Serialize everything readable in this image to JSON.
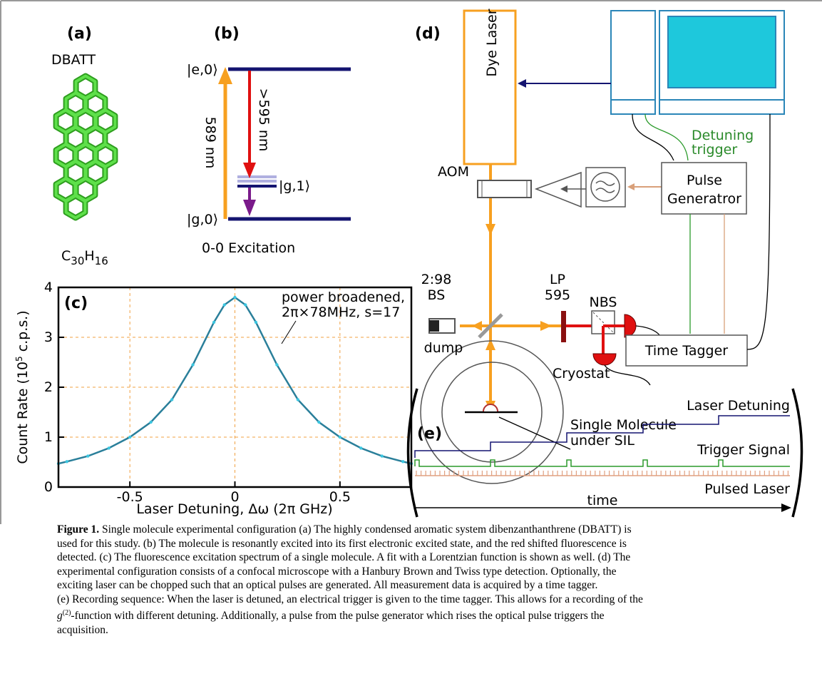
{
  "panel_a": {
    "label": "(a)",
    "name": "DBATT",
    "formula": [
      "C",
      "30",
      "H",
      "16"
    ]
  },
  "panel_b": {
    "label": "(b)",
    "upper": "|e,0⟩",
    "lower": "|g,0⟩",
    "vib": "|g,1⟩",
    "excitation": "589 nm",
    "emission": ">595 nm",
    "caption": "0-0 Excitation"
  },
  "chart_data": {
    "type": "line",
    "panel_label": "(c)",
    "annotation": [
      "power broadened,",
      "2π×78MHz, s=17"
    ],
    "x_label": "Laser Detuning, Δω (2π GHz)",
    "y_label": [
      "Count Rate (10",
      "5",
      " c.p.s.)"
    ],
    "x": [
      -0.84,
      -0.8,
      -0.7,
      -0.6,
      -0.5,
      -0.4,
      -0.3,
      -0.2,
      -0.1,
      -0.05,
      0,
      0.05,
      0.1,
      0.2,
      0.3,
      0.4,
      0.5,
      0.6,
      0.7,
      0.8,
      0.84
    ],
    "values": [
      0.47,
      0.51,
      0.62,
      0.78,
      1.0,
      1.3,
      1.75,
      2.45,
      3.3,
      3.65,
      3.8,
      3.65,
      3.3,
      2.45,
      1.75,
      1.3,
      1.0,
      0.78,
      0.62,
      0.51,
      0.47
    ],
    "color": "#2a7f9a",
    "marker_color": "#3cc6e0",
    "xlim": [
      -0.84,
      0.84
    ],
    "ylim": [
      0,
      4
    ],
    "xticks": [
      -0.5,
      0,
      0.5
    ],
    "yticks": [
      0,
      1,
      2,
      3,
      4
    ],
    "grid": true,
    "grid_color": "#f0a040"
  },
  "panel_d": {
    "label": "(d)",
    "laser": "Dye Laser",
    "aom": "AOM",
    "bs": [
      "2:98",
      "BS"
    ],
    "dump": "dump",
    "lp": [
      "LP",
      "595"
    ],
    "nbs": "NBS",
    "cryostat": "Cryostat",
    "sample": [
      "Single Molecule",
      "under SIL"
    ],
    "pulse_gen": [
      "Pulse",
      "Generatror"
    ],
    "detuning": [
      "Detuning",
      "trigger"
    ],
    "tagger": "Time Tagger"
  },
  "panel_e": {
    "label": "(e)",
    "detuning": "Laser Detuning",
    "trigger": "Trigger Signal",
    "pulsed": "Pulsed Laser",
    "time": "time"
  },
  "caption": {
    "label": "Figure 1.",
    "lines": [
      " Single molecule experimental configuration (a) The highly condensed aromatic system dibenzanthanthrene (DBATT) is",
      "used for this study. (b) The molecule is resonantly excited into its first electronic excited state, and the red shifted fluorescence is",
      "detected. (c) The fluorescence excitation spectrum of a single molecule. A fit with a Lorentzian function is shown as well. (d) The",
      "experimental configuration consists of a confocal microscope with a Hanbury Brown and Twiss type detection. Optionally, the",
      "exciting laser can be chopped such that an optical pulses are generated. All measurement data is acquired by a time tagger.",
      "(e) Recording sequence: When the laser is detuned, an electrical trigger is given to the time tagger. This allows for a recording of the"
    ],
    "g_line": [
      "g",
      "(2)",
      "-function with different detuning. Additionally, a pulse from the pulse generator which rises the optical pulse triggers the"
    ],
    "last_line": "acquisition."
  }
}
